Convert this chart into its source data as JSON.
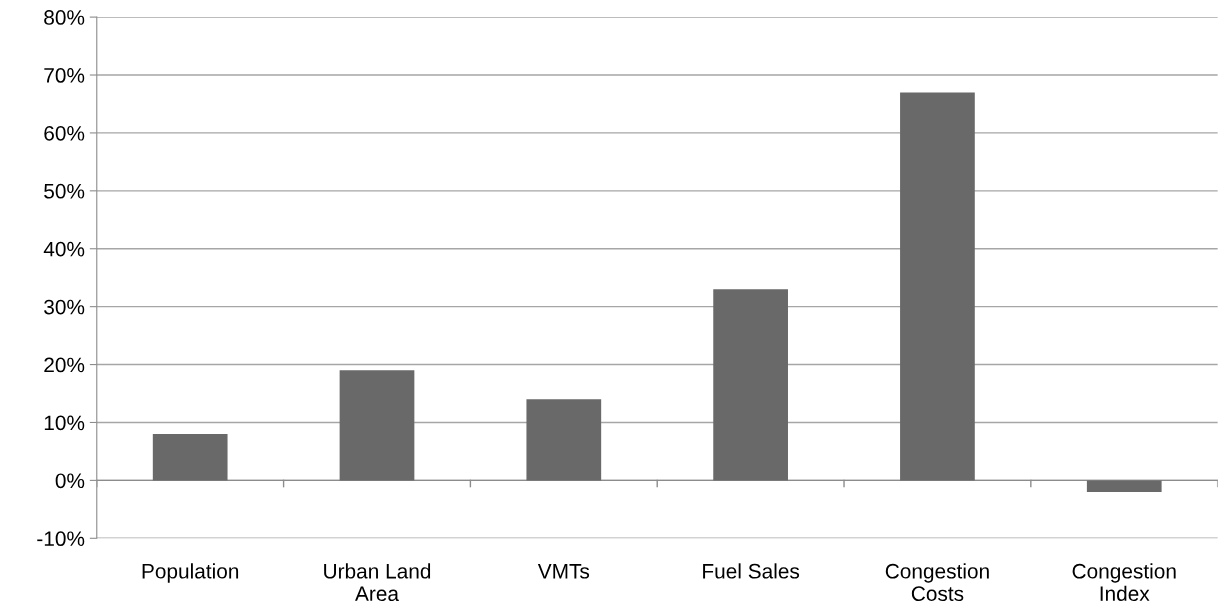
{
  "chart_data": {
    "type": "bar",
    "categories": [
      "Population",
      "Urban Land Area",
      "VMTs",
      "Fuel Sales",
      "Congestion Costs",
      "Congestion Index"
    ],
    "values": [
      8,
      19,
      14,
      33,
      67,
      -2
    ],
    "color": "#696969",
    "ylim": [
      -10,
      80
    ],
    "yticks": [
      {
        "value": -10,
        "label": "-10%"
      },
      {
        "value": 0,
        "label": "0%"
      },
      {
        "value": 10,
        "label": "10%"
      },
      {
        "value": 20,
        "label": "20%"
      },
      {
        "value": 30,
        "label": "30%"
      },
      {
        "value": 40,
        "label": "40%"
      },
      {
        "value": 50,
        "label": "50%"
      },
      {
        "value": 60,
        "label": "60%"
      },
      {
        "value": 70,
        "label": "70%"
      },
      {
        "value": 80,
        "label": "80%"
      }
    ],
    "grid": "y"
  }
}
